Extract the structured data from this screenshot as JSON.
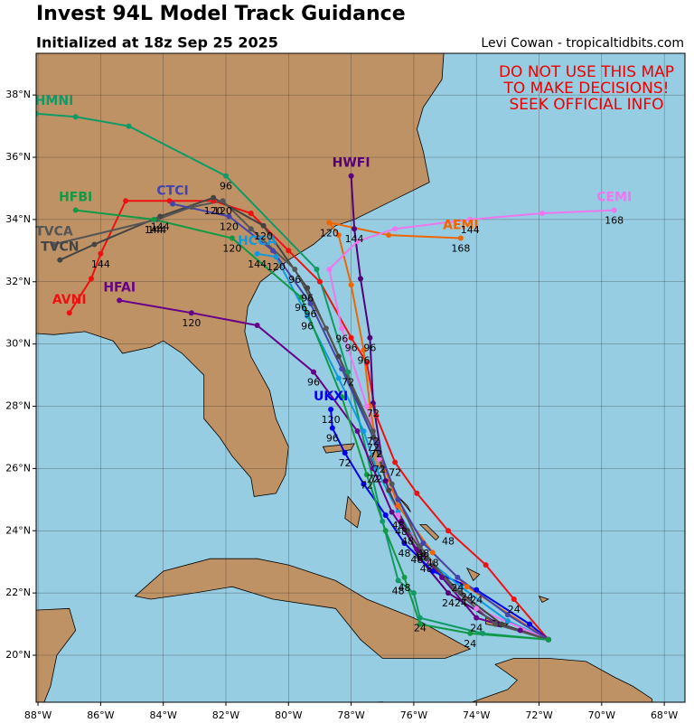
{
  "chart_data": {
    "type": "track",
    "title": "Invest 94L Model Track Guidance",
    "subtitle": "Initialized at 18z Sep 25 2025",
    "credit": "Levi Cowan - tropicaltidbits.com",
    "annotation": [
      "DO NOT USE THIS MAP",
      "TO MAKE DECISIONS!",
      "SEEK OFFICIAL INFO"
    ],
    "annotation_color": "#ee0000",
    "xlim": [
      -88.06,
      -67.34
    ],
    "ylim": [
      18.49,
      39.34
    ],
    "xticks": [
      {
        "value": -88,
        "label": "88°W"
      },
      {
        "value": -86,
        "label": "86°W"
      },
      {
        "value": -84,
        "label": "84°W"
      },
      {
        "value": -82,
        "label": "82°W"
      },
      {
        "value": -80,
        "label": "80°W"
      },
      {
        "value": -78,
        "label": "78°W"
      },
      {
        "value": -76,
        "label": "76°W"
      },
      {
        "value": -74,
        "label": "74°W"
      },
      {
        "value": -72,
        "label": "72°W"
      },
      {
        "value": -70,
        "label": "70°W"
      },
      {
        "value": -68,
        "label": "68°W"
      }
    ],
    "yticks": [
      {
        "value": 20,
        "label": "20°N"
      },
      {
        "value": 22,
        "label": "22°N"
      },
      {
        "value": 24,
        "label": "24°N"
      },
      {
        "value": 26,
        "label": "26°N"
      },
      {
        "value": 28,
        "label": "28°N"
      },
      {
        "value": 30,
        "label": "30°N"
      },
      {
        "value": 32,
        "label": "32°N"
      },
      {
        "value": 34,
        "label": "34°N"
      },
      {
        "value": 36,
        "label": "36°N"
      },
      {
        "value": 38,
        "label": "38°N"
      }
    ],
    "grid": true,
    "series": [
      {
        "name": "AVNI",
        "color": "#ee1111",
        "x": [
          -71.7,
          -72.8,
          -73.7,
          -74.9,
          -75.9,
          -76.6,
          -77.2,
          -77.5,
          -78.0,
          -79.0,
          -80.0,
          -81.2,
          -82.4,
          -83.8,
          -85.2,
          -86.0,
          -86.3,
          -87.0
        ],
        "y": [
          20.5,
          21.8,
          22.9,
          24.0,
          25.2,
          26.2,
          27.7,
          29.4,
          30.2,
          32.0,
          33.0,
          34.2,
          34.6,
          34.6,
          34.6,
          32.9,
          32.1,
          31.0
        ],
        "labels": [
          null,
          24,
          null,
          48,
          null,
          72,
          null,
          null,
          96,
          null,
          null,
          null,
          120,
          null,
          null,
          144,
          null,
          null
        ]
      },
      {
        "name": "HMNI",
        "color": "#119966",
        "x": [
          -71.7,
          -73.8,
          -75.8,
          -76.0,
          -76.5,
          -77.0,
          -78.1,
          -79.1,
          -82.0,
          -85.1,
          -86.8,
          -88.06
        ],
        "y": [
          20.5,
          20.7,
          21.2,
          22.0,
          22.4,
          24.3,
          29.1,
          32.4,
          35.4,
          37.0,
          37.3,
          37.4
        ],
        "labels": [
          null,
          null,
          24,
          null,
          48,
          null,
          72,
          null,
          96,
          null,
          null,
          null
        ]
      },
      {
        "name": "HFAI",
        "color": "#660088",
        "x": [
          -71.7,
          -72.6,
          -74.0,
          -75.1,
          -75.9,
          -76.7,
          -77.3,
          -77.8,
          -79.2,
          -81.0,
          -83.1,
          -85.4
        ],
        "y": [
          20.5,
          20.8,
          21.2,
          22.5,
          23.4,
          24.6,
          26.0,
          27.2,
          29.1,
          30.6,
          31.0,
          31.4
        ],
        "labels": [
          null,
          null,
          24,
          null,
          48,
          null,
          72,
          null,
          96,
          null,
          120,
          null
        ]
      },
      {
        "name": "HWFI",
        "color": "#550077",
        "x": [
          -71.7,
          -73.3,
          -74.9,
          -75.8,
          -76.4,
          -76.9,
          -77.3,
          -77.4,
          -77.7,
          -77.9,
          -78.0
        ],
        "y": [
          20.5,
          21.0,
          22.0,
          23.1,
          24.3,
          25.6,
          28.1,
          30.2,
          32.1,
          33.7,
          35.4
        ],
        "labels": [
          null,
          null,
          24,
          null,
          48,
          null,
          72,
          96,
          null,
          144,
          null
        ]
      },
      {
        "name": "UKXI",
        "color": "#0000ee",
        "x": [
          -71.7,
          -72.3,
          -74.0,
          -75.4,
          -76.3,
          -76.9,
          -77.6,
          -78.2,
          -78.6,
          -78.65
        ],
        "y": [
          20.5,
          21.0,
          22.1,
          22.7,
          23.6,
          24.5,
          25.5,
          26.5,
          27.3,
          27.9
        ],
        "labels": [
          null,
          null,
          24,
          null,
          48,
          null,
          null,
          72,
          96,
          120
        ]
      },
      {
        "name": "HCCA",
        "color": "#1199dd",
        "x": [
          -71.7,
          -73.0,
          -74.5,
          -75.6,
          -76.5,
          -77.2,
          -77.6,
          -78.4,
          -79.4,
          -80.4,
          -81.0
        ],
        "y": [
          20.5,
          21.1,
          22.2,
          23.1,
          24.6,
          26.0,
          27.2,
          28.9,
          30.9,
          32.8,
          32.9
        ],
        "labels": [
          null,
          null,
          null,
          48,
          null,
          72,
          null,
          null,
          96,
          120,
          144
        ]
      },
      {
        "name": "AEMI",
        "color": "#ee6600",
        "x": [
          -71.7,
          -74.3,
          -75.4,
          -76.5,
          -77.2,
          -77.4,
          -77.6,
          -78.0,
          -78.4,
          -78.7,
          -76.8,
          -74.5
        ],
        "y": [
          20.5,
          22.2,
          23.3,
          24.8,
          26.8,
          28.0,
          29.8,
          31.9,
          33.5,
          33.9,
          33.5,
          33.4
        ],
        "labels": [
          null,
          24,
          48,
          null,
          72,
          null,
          96,
          null,
          null,
          120,
          null,
          168
        ]
      },
      {
        "name": "CEMI",
        "color": "#ee77ee",
        "x": [
          -71.7,
          -74.0,
          -75.5,
          -76.5,
          -77.1,
          -77.5,
          -78.3,
          -78.7,
          -77.8,
          -76.6,
          -74.2,
          -71.9,
          -69.6
        ],
        "y": [
          20.5,
          21.5,
          23.0,
          24.5,
          26.3,
          28.0,
          30.5,
          32.4,
          33.3,
          33.7,
          34.0,
          34.2,
          34.3
        ],
        "labels": [
          null,
          null,
          null,
          48,
          72,
          null,
          96,
          null,
          null,
          null,
          144,
          null,
          168
        ]
      },
      {
        "name": "TVCN",
        "color": "#444444",
        "x": [
          -71.7,
          -73.2,
          -74.5,
          -75.6,
          -76.2,
          -76.8,
          -77.3,
          -78.4,
          -79.4,
          -80.8,
          -82.4,
          -84.1,
          -86.2,
          -87.3
        ],
        "y": [
          20.5,
          21.0,
          22.0,
          23.1,
          24.0,
          25.3,
          27.0,
          29.6,
          31.8,
          33.8,
          34.7,
          34.1,
          33.2,
          32.7
        ],
        "labels": [
          null,
          null,
          24,
          null,
          48,
          null,
          72,
          null,
          96,
          120,
          null,
          144,
          null,
          null
        ]
      },
      {
        "name": "TVCA",
        "color": "#555555",
        "x": [
          -71.7,
          -73.4,
          -74.7,
          -75.8,
          -76.7,
          -77.3,
          -78.8,
          -79.8,
          -81.2,
          -82.1,
          -83.1,
          -84.2,
          -87.5
        ],
        "y": [
          20.5,
          21.0,
          22.1,
          23.5,
          25.5,
          27.2,
          30.5,
          32.4,
          33.7,
          34.6,
          34.4,
          34.0,
          33.2
        ],
        "labels": [
          null,
          null,
          null,
          48,
          null,
          72,
          null,
          96,
          null,
          120,
          null,
          144,
          null
        ]
      },
      {
        "name": "CTCI",
        "color": "#4444aa",
        "x": [
          -71.7,
          -73.0,
          -74.6,
          -75.7,
          -76.5,
          -77.2,
          -78.3,
          -79.3,
          -80.5,
          -81.9,
          -83.7
        ],
        "y": [
          20.5,
          21.3,
          22.5,
          23.6,
          25.0,
          26.8,
          29.2,
          31.3,
          33.0,
          34.1,
          34.5
        ],
        "labels": [
          null,
          null,
          24,
          48,
          null,
          72,
          null,
          96,
          null,
          120,
          null
        ]
      },
      {
        "name": "HFBI",
        "color": "#119944",
        "x": [
          -71.7,
          -74.2,
          -75.8,
          -76.3,
          -76.9,
          -77.5,
          -78.3,
          -79.6,
          -81.8,
          -84.3,
          -86.8
        ],
        "y": [
          20.5,
          20.7,
          21.0,
          22.5,
          24.0,
          25.8,
          28.3,
          31.5,
          33.4,
          34.0,
          34.3
        ],
        "labels": [
          null,
          24,
          null,
          48,
          null,
          72,
          null,
          96,
          120,
          144,
          null
        ]
      }
    ]
  }
}
